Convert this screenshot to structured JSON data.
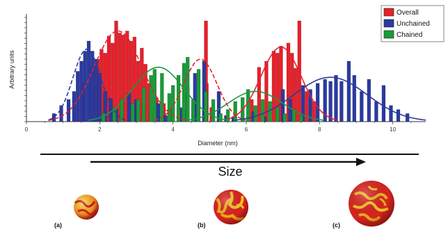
{
  "chart_data": {
    "type": "bar",
    "title": "",
    "xlabel": "Diameter (nm)",
    "ylabel": "Arbitrary units",
    "xlim": [
      0,
      10.9
    ],
    "ylim": [
      0,
      100
    ],
    "xticks": [
      "0",
      "2",
      "4",
      "6",
      "8",
      "10"
    ],
    "legend_position": "top-right",
    "bin_width": 0.095,
    "series": [
      {
        "name": "Overall",
        "color": "#e8202a",
        "bars": [
          {
            "x": 1.3,
            "y": 24
          },
          {
            "x": 1.55,
            "y": 38
          },
          {
            "x": 1.8,
            "y": 55
          },
          {
            "x": 1.95,
            "y": 62
          },
          {
            "x": 2.05,
            "y": 72
          },
          {
            "x": 2.15,
            "y": 68
          },
          {
            "x": 2.25,
            "y": 85
          },
          {
            "x": 2.35,
            "y": 78
          },
          {
            "x": 2.45,
            "y": 100
          },
          {
            "x": 2.55,
            "y": 88
          },
          {
            "x": 2.65,
            "y": 86
          },
          {
            "x": 2.75,
            "y": 90
          },
          {
            "x": 2.85,
            "y": 80
          },
          {
            "x": 2.95,
            "y": 84
          },
          {
            "x": 3.05,
            "y": 60
          },
          {
            "x": 3.15,
            "y": 73
          },
          {
            "x": 3.25,
            "y": 57
          },
          {
            "x": 3.35,
            "y": 38
          },
          {
            "x": 3.55,
            "y": 24
          },
          {
            "x": 3.75,
            "y": 18
          },
          {
            "x": 3.95,
            "y": 14
          },
          {
            "x": 4.15,
            "y": 14
          },
          {
            "x": 4.35,
            "y": 12
          },
          {
            "x": 4.55,
            "y": 16
          },
          {
            "x": 4.85,
            "y": 12
          },
          {
            "x": 4.92,
            "y": 38
          },
          {
            "x": 4.9,
            "y": 100
          },
          {
            "x": 5.05,
            "y": 14
          },
          {
            "x": 5.25,
            "y": 8
          },
          {
            "x": 5.45,
            "y": 6
          },
          {
            "x": 6.15,
            "y": 22
          },
          {
            "x": 6.35,
            "y": 54
          },
          {
            "x": 6.55,
            "y": 60
          },
          {
            "x": 6.75,
            "y": 70
          },
          {
            "x": 6.85,
            "y": 68
          },
          {
            "x": 6.95,
            "y": 75
          },
          {
            "x": 7.15,
            "y": 78
          },
          {
            "x": 7.25,
            "y": 68
          },
          {
            "x": 7.35,
            "y": 53
          },
          {
            "x": 7.45,
            "y": 100
          },
          {
            "x": 7.65,
            "y": 30
          },
          {
            "x": 7.85,
            "y": 20
          }
        ]
      },
      {
        "name": "Unchained",
        "color": "#2a3aa0",
        "bars": [
          {
            "x": 0.75,
            "y": 8
          },
          {
            "x": 0.95,
            "y": 16
          },
          {
            "x": 1.15,
            "y": 22
          },
          {
            "x": 1.3,
            "y": 30
          },
          {
            "x": 1.4,
            "y": 50
          },
          {
            "x": 1.5,
            "y": 60
          },
          {
            "x": 1.6,
            "y": 70
          },
          {
            "x": 1.7,
            "y": 80
          },
          {
            "x": 1.8,
            "y": 70
          },
          {
            "x": 1.9,
            "y": 62
          },
          {
            "x": 2.0,
            "y": 48
          },
          {
            "x": 2.15,
            "y": 30
          },
          {
            "x": 2.3,
            "y": 23
          },
          {
            "x": 2.45,
            "y": 12
          },
          {
            "x": 2.6,
            "y": 8
          },
          {
            "x": 2.8,
            "y": 28
          },
          {
            "x": 3.0,
            "y": 22
          },
          {
            "x": 3.2,
            "y": 12
          },
          {
            "x": 3.4,
            "y": 8
          },
          {
            "x": 3.6,
            "y": 18
          },
          {
            "x": 3.8,
            "y": 6
          },
          {
            "x": 4.0,
            "y": 14
          },
          {
            "x": 4.2,
            "y": 14
          },
          {
            "x": 4.4,
            "y": 34
          },
          {
            "x": 4.6,
            "y": 48
          },
          {
            "x": 4.85,
            "y": 60
          },
          {
            "x": 5.25,
            "y": 30
          },
          {
            "x": 5.45,
            "y": 6
          },
          {
            "x": 5.65,
            "y": 5
          },
          {
            "x": 5.9,
            "y": 8
          },
          {
            "x": 6.2,
            "y": 10
          },
          {
            "x": 6.5,
            "y": 5
          },
          {
            "x": 7.0,
            "y": 32
          },
          {
            "x": 7.2,
            "y": 22
          },
          {
            "x": 7.55,
            "y": 36
          },
          {
            "x": 7.75,
            "y": 32
          },
          {
            "x": 7.95,
            "y": 38
          },
          {
            "x": 8.15,
            "y": 42
          },
          {
            "x": 8.3,
            "y": 40
          },
          {
            "x": 8.45,
            "y": 46
          },
          {
            "x": 8.6,
            "y": 40
          },
          {
            "x": 8.8,
            "y": 60
          },
          {
            "x": 8.95,
            "y": 46
          },
          {
            "x": 9.15,
            "y": 30
          },
          {
            "x": 9.35,
            "y": 42
          },
          {
            "x": 9.55,
            "y": 20
          },
          {
            "x": 9.75,
            "y": 36
          },
          {
            "x": 9.95,
            "y": 16
          },
          {
            "x": 10.15,
            "y": 12
          },
          {
            "x": 10.4,
            "y": 8
          }
        ]
      },
      {
        "name": "Chained",
        "color": "#1a9a3a",
        "bars": [
          {
            "x": 2.1,
            "y": 8
          },
          {
            "x": 2.4,
            "y": 14
          },
          {
            "x": 2.6,
            "y": 22
          },
          {
            "x": 2.9,
            "y": 18
          },
          {
            "x": 3.05,
            "y": 22
          },
          {
            "x": 3.2,
            "y": 34
          },
          {
            "x": 3.4,
            "y": 46
          },
          {
            "x": 3.5,
            "y": 52
          },
          {
            "x": 3.7,
            "y": 48
          },
          {
            "x": 3.9,
            "y": 28
          },
          {
            "x": 4.0,
            "y": 36
          },
          {
            "x": 4.15,
            "y": 46
          },
          {
            "x": 4.3,
            "y": 58
          },
          {
            "x": 4.4,
            "y": 64
          },
          {
            "x": 4.55,
            "y": 22
          },
          {
            "x": 4.7,
            "y": 52
          },
          {
            "x": 4.9,
            "y": 30
          },
          {
            "x": 5.1,
            "y": 22
          },
          {
            "x": 5.3,
            "y": 8
          },
          {
            "x": 5.5,
            "y": 12
          },
          {
            "x": 5.7,
            "y": 20
          },
          {
            "x": 5.9,
            "y": 24
          },
          {
            "x": 6.05,
            "y": 32
          },
          {
            "x": 6.25,
            "y": 16
          },
          {
            "x": 6.45,
            "y": 22
          },
          {
            "x": 6.65,
            "y": 20
          },
          {
            "x": 6.85,
            "y": 14
          },
          {
            "x": 7.05,
            "y": 8
          },
          {
            "x": 7.3,
            "y": 12
          },
          {
            "x": 7.5,
            "y": 6
          }
        ]
      }
    ],
    "fit_curves": [
      {
        "series": "Overall",
        "color": "#e8202a",
        "dash": "6,3",
        "amp": 90,
        "mu": 2.5,
        "sigma": 0.65
      },
      {
        "series": "Overall",
        "color": "#e8202a",
        "dash": "6,3",
        "amp": 62,
        "mu": 4.75,
        "sigma": 0.45
      },
      {
        "series": "Overall",
        "color": "#e8202a",
        "dash": "",
        "amp": 74,
        "mu": 6.95,
        "sigma": 0.55
      },
      {
        "series": "Unchained",
        "color": "#2a3aa0",
        "dash": "6,3",
        "amp": 72,
        "mu": 1.65,
        "sigma": 0.38
      },
      {
        "series": "Unchained",
        "color": "#2a3aa0",
        "dash": "",
        "amp": 44,
        "mu": 8.3,
        "sigma": 1.0
      },
      {
        "series": "Chained",
        "color": "#1a9a3a",
        "dash": "",
        "amp": 54,
        "mu": 3.6,
        "sigma": 0.7
      },
      {
        "series": "Chained",
        "color": "#1a9a3a",
        "dash": "",
        "amp": 30,
        "mu": 6.25,
        "sigma": 0.75
      }
    ]
  },
  "annotation": {
    "size_label": "Size"
  },
  "particles": [
    {
      "label": "(a)"
    },
    {
      "label": "(b)"
    },
    {
      "label": "(c)"
    }
  ]
}
